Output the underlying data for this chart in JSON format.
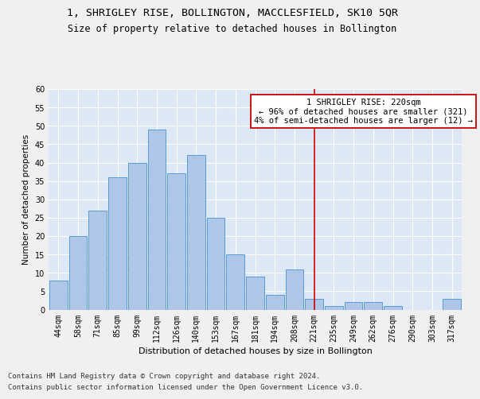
{
  "title": "1, SHRIGLEY RISE, BOLLINGTON, MACCLESFIELD, SK10 5QR",
  "subtitle": "Size of property relative to detached houses in Bollington",
  "xlabel": "Distribution of detached houses by size in Bollington",
  "ylabel": "Number of detached properties",
  "categories": [
    "44sqm",
    "58sqm",
    "71sqm",
    "85sqm",
    "99sqm",
    "112sqm",
    "126sqm",
    "140sqm",
    "153sqm",
    "167sqm",
    "181sqm",
    "194sqm",
    "208sqm",
    "221sqm",
    "235sqm",
    "249sqm",
    "262sqm",
    "276sqm",
    "290sqm",
    "303sqm",
    "317sqm"
  ],
  "values": [
    8,
    20,
    27,
    36,
    40,
    49,
    37,
    42,
    25,
    15,
    9,
    4,
    11,
    3,
    1,
    2,
    2,
    1,
    0,
    0,
    3
  ],
  "bar_color": "#aec6e8",
  "bar_edge_color": "#5b9bd5",
  "vline_x_idx": 13,
  "vline_color": "#cc0000",
  "annotation_text": "1 SHRIGLEY RISE: 220sqm\n← 96% of detached houses are smaller (321)\n4% of semi-detached houses are larger (12) →",
  "annotation_box_color": "#ffffff",
  "annotation_box_edge_color": "#cc0000",
  "ylim": [
    0,
    60
  ],
  "yticks": [
    0,
    5,
    10,
    15,
    20,
    25,
    30,
    35,
    40,
    45,
    50,
    55,
    60
  ],
  "footer_line1": "Contains HM Land Registry data © Crown copyright and database right 2024.",
  "footer_line2": "Contains public sector information licensed under the Open Government Licence v3.0.",
  "bg_color": "#dce8f5",
  "grid_color": "#ffffff",
  "fig_bg_color": "#f0f0f0",
  "title_fontsize": 9.5,
  "subtitle_fontsize": 8.5,
  "xlabel_fontsize": 8,
  "ylabel_fontsize": 7.5,
  "tick_fontsize": 7,
  "annot_fontsize": 7.5,
  "footer_fontsize": 6.5
}
